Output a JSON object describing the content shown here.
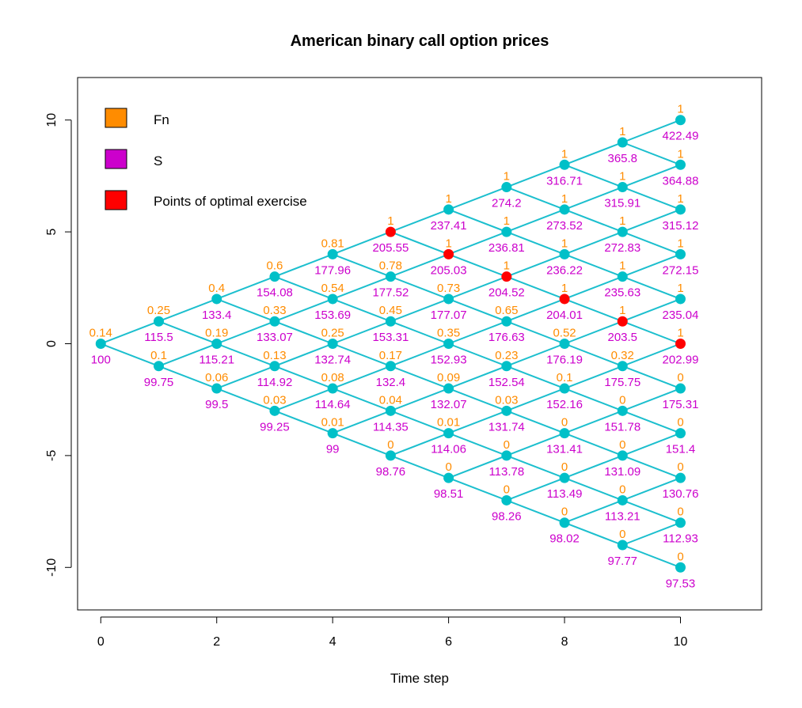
{
  "chart_data": {
    "type": "scatter",
    "title": "American binary call option prices",
    "xlabel": "Time step",
    "ylabel": "",
    "xlim": [
      -0.4,
      11.4
    ],
    "ylim": [
      -11.9,
      11.9
    ],
    "x_ticks": [
      0,
      2,
      4,
      6,
      8,
      10
    ],
    "y_ticks": [
      -10,
      -5,
      0,
      5,
      10
    ],
    "grid": false,
    "legend": {
      "position": "top-left",
      "entries": [
        {
          "label": "Fn",
          "color": "#ff8c00"
        },
        {
          "label": "S",
          "color": "#cc00cc"
        },
        {
          "label": "Points of optimal exercise",
          "color": "#ff0000"
        }
      ]
    },
    "colors": {
      "edge": "#1cbfce",
      "node": "#00c0c8",
      "exercise": "#ff0000",
      "fn": "#ff8c00",
      "s": "#cc00cc"
    },
    "nodes": [
      {
        "t": 0,
        "j": 0,
        "fn": "0.14",
        "s": "100"
      },
      {
        "t": 1,
        "j": 1,
        "fn": "0.25",
        "s": "115.5"
      },
      {
        "t": 1,
        "j": -1,
        "fn": "0.1",
        "s": "99.75"
      },
      {
        "t": 2,
        "j": 2,
        "fn": "0.4",
        "s": "133.4"
      },
      {
        "t": 2,
        "j": 0,
        "fn": "0.19",
        "s": "115.21"
      },
      {
        "t": 2,
        "j": -2,
        "fn": "0.06",
        "s": "99.5"
      },
      {
        "t": 3,
        "j": 3,
        "fn": "0.6",
        "s": "154.08"
      },
      {
        "t": 3,
        "j": 1,
        "fn": "0.33",
        "s": "133.07"
      },
      {
        "t": 3,
        "j": -1,
        "fn": "0.13",
        "s": "114.92"
      },
      {
        "t": 3,
        "j": -3,
        "fn": "0.03",
        "s": "99.25"
      },
      {
        "t": 4,
        "j": 4,
        "fn": "0.81",
        "s": "177.96"
      },
      {
        "t": 4,
        "j": 2,
        "fn": "0.54",
        "s": "153.69"
      },
      {
        "t": 4,
        "j": 0,
        "fn": "0.25",
        "s": "132.74"
      },
      {
        "t": 4,
        "j": -2,
        "fn": "0.08",
        "s": "114.64"
      },
      {
        "t": 4,
        "j": -4,
        "fn": "0.01",
        "s": "99"
      },
      {
        "t": 5,
        "j": 5,
        "fn": "1",
        "s": "205.55",
        "exercise": true
      },
      {
        "t": 5,
        "j": 3,
        "fn": "0.78",
        "s": "177.52"
      },
      {
        "t": 5,
        "j": 1,
        "fn": "0.45",
        "s": "153.31"
      },
      {
        "t": 5,
        "j": -1,
        "fn": "0.17",
        "s": "132.4"
      },
      {
        "t": 5,
        "j": -3,
        "fn": "0.04",
        "s": "114.35"
      },
      {
        "t": 5,
        "j": -5,
        "fn": "0",
        "s": "98.76"
      },
      {
        "t": 6,
        "j": 6,
        "fn": "1",
        "s": "237.41"
      },
      {
        "t": 6,
        "j": 4,
        "fn": "1",
        "s": "205.03",
        "exercise": true
      },
      {
        "t": 6,
        "j": 2,
        "fn": "0.73",
        "s": "177.07"
      },
      {
        "t": 6,
        "j": 0,
        "fn": "0.35",
        "s": "152.93"
      },
      {
        "t": 6,
        "j": -2,
        "fn": "0.09",
        "s": "132.07"
      },
      {
        "t": 6,
        "j": -4,
        "fn": "0.01",
        "s": "114.06"
      },
      {
        "t": 6,
        "j": -6,
        "fn": "0",
        "s": "98.51"
      },
      {
        "t": 7,
        "j": 7,
        "fn": "1",
        "s": "274.2"
      },
      {
        "t": 7,
        "j": 5,
        "fn": "1",
        "s": "236.81"
      },
      {
        "t": 7,
        "j": 3,
        "fn": "1",
        "s": "204.52",
        "exercise": true
      },
      {
        "t": 7,
        "j": 1,
        "fn": "0.65",
        "s": "176.63"
      },
      {
        "t": 7,
        "j": -1,
        "fn": "0.23",
        "s": "152.54"
      },
      {
        "t": 7,
        "j": -3,
        "fn": "0.03",
        "s": "131.74"
      },
      {
        "t": 7,
        "j": -5,
        "fn": "0",
        "s": "113.78"
      },
      {
        "t": 7,
        "j": -7,
        "fn": "0",
        "s": "98.26"
      },
      {
        "t": 8,
        "j": 8,
        "fn": "1",
        "s": "316.71"
      },
      {
        "t": 8,
        "j": 6,
        "fn": "1",
        "s": "273.52"
      },
      {
        "t": 8,
        "j": 4,
        "fn": "1",
        "s": "236.22"
      },
      {
        "t": 8,
        "j": 2,
        "fn": "1",
        "s": "204.01",
        "exercise": true
      },
      {
        "t": 8,
        "j": 0,
        "fn": "0.52",
        "s": "176.19"
      },
      {
        "t": 8,
        "j": -2,
        "fn": "0.1",
        "s": "152.16"
      },
      {
        "t": 8,
        "j": -4,
        "fn": "0",
        "s": "131.41"
      },
      {
        "t": 8,
        "j": -6,
        "fn": "0",
        "s": "113.49"
      },
      {
        "t": 8,
        "j": -8,
        "fn": "0",
        "s": "98.02"
      },
      {
        "t": 9,
        "j": 9,
        "fn": "1",
        "s": "365.8"
      },
      {
        "t": 9,
        "j": 7,
        "fn": "1",
        "s": "315.91"
      },
      {
        "t": 9,
        "j": 5,
        "fn": "1",
        "s": "272.83"
      },
      {
        "t": 9,
        "j": 3,
        "fn": "1",
        "s": "235.63"
      },
      {
        "t": 9,
        "j": 1,
        "fn": "1",
        "s": "203.5",
        "exercise": true
      },
      {
        "t": 9,
        "j": -1,
        "fn": "0.32",
        "s": "175.75"
      },
      {
        "t": 9,
        "j": -3,
        "fn": "0",
        "s": "151.78"
      },
      {
        "t": 9,
        "j": -5,
        "fn": "0",
        "s": "131.09"
      },
      {
        "t": 9,
        "j": -7,
        "fn": "0",
        "s": "113.21"
      },
      {
        "t": 9,
        "j": -9,
        "fn": "0",
        "s": "97.77"
      },
      {
        "t": 10,
        "j": 10,
        "fn": "1",
        "s": "422.49"
      },
      {
        "t": 10,
        "j": 8,
        "fn": "1",
        "s": "364.88"
      },
      {
        "t": 10,
        "j": 6,
        "fn": "1",
        "s": "315.12"
      },
      {
        "t": 10,
        "j": 4,
        "fn": "1",
        "s": "272.15"
      },
      {
        "t": 10,
        "j": 2,
        "fn": "1",
        "s": "235.04"
      },
      {
        "t": 10,
        "j": 0,
        "fn": "1",
        "s": "202.99",
        "exercise": true
      },
      {
        "t": 10,
        "j": -2,
        "fn": "0",
        "s": "175.31"
      },
      {
        "t": 10,
        "j": -4,
        "fn": "0",
        "s": "151.4"
      },
      {
        "t": 10,
        "j": -6,
        "fn": "0",
        "s": "130.76"
      },
      {
        "t": 10,
        "j": -8,
        "fn": "0",
        "s": "112.93"
      },
      {
        "t": 10,
        "j": -10,
        "fn": "0",
        "s": "97.53"
      }
    ]
  }
}
